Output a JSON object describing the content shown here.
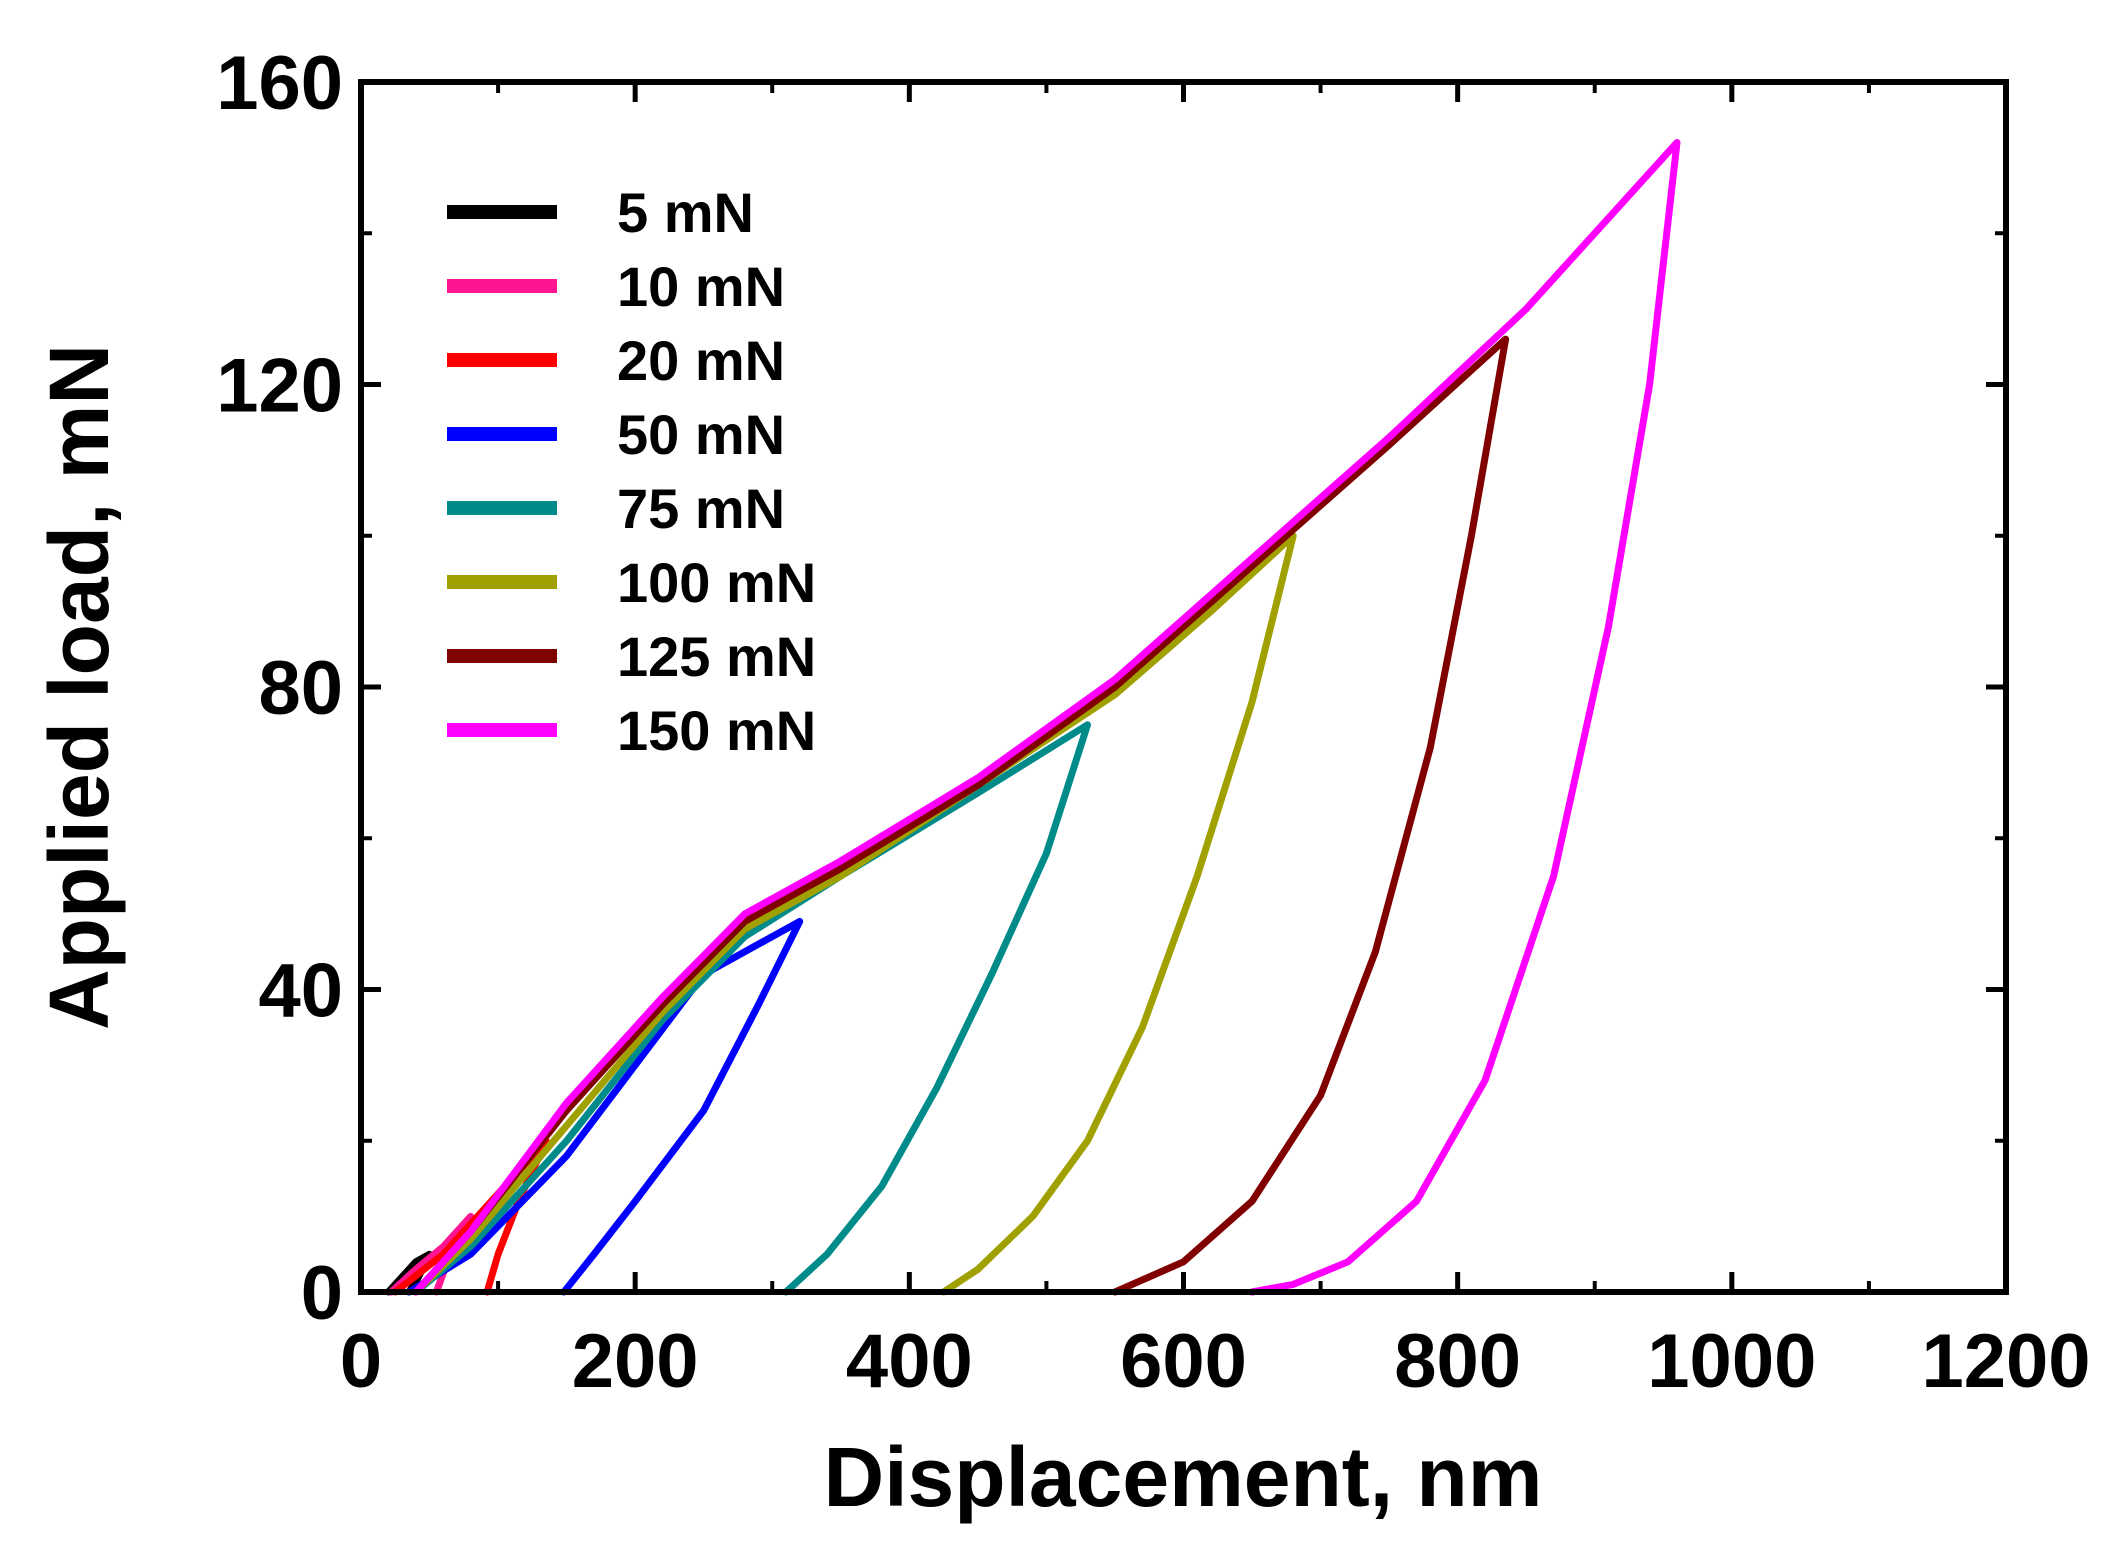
{
  "chart_data": {
    "type": "line",
    "title": "",
    "xlabel": "Displacement, nm",
    "ylabel": "Applied load, mN",
    "xlim": [
      0,
      1200
    ],
    "ylim": [
      0,
      160
    ],
    "xticks": [
      0,
      200,
      400,
      600,
      800,
      1000,
      1200
    ],
    "yticks": [
      0,
      40,
      80,
      120,
      160
    ],
    "xtick_labels": [
      "0",
      "200",
      "400",
      "600",
      "800",
      "1000",
      "1200"
    ],
    "ytick_labels": [
      "0",
      "40",
      "80",
      "120",
      "160"
    ],
    "grid": false,
    "legend_position": "top-left",
    "series": [
      {
        "name": "5 mN",
        "color": "#000000",
        "loading": [
          [
            20,
            0
          ],
          [
            30,
            2
          ],
          [
            40,
            4
          ],
          [
            50,
            5
          ]
        ],
        "unloading": [
          [
            50,
            5
          ],
          [
            42,
            2
          ],
          [
            35,
            0
          ]
        ]
      },
      {
        "name": "10 mN",
        "color": "#ff1493",
        "loading": [
          [
            22,
            0
          ],
          [
            40,
            3
          ],
          [
            60,
            6
          ],
          [
            80,
            10
          ]
        ],
        "unloading": [
          [
            80,
            10
          ],
          [
            65,
            5
          ],
          [
            55,
            0
          ]
        ]
      },
      {
        "name": "20 mN",
        "color": "#ff0000",
        "loading": [
          [
            25,
            0
          ],
          [
            60,
            5
          ],
          [
            100,
            13
          ],
          [
            135,
            20
          ]
        ],
        "unloading": [
          [
            135,
            20
          ],
          [
            115,
            12
          ],
          [
            100,
            5
          ],
          [
            92,
            0
          ]
        ]
      },
      {
        "name": "50 mN",
        "color": "#0000ff",
        "loading": [
          [
            35,
            0
          ],
          [
            80,
            5
          ],
          [
            150,
            18
          ],
          [
            200,
            30
          ],
          [
            250,
            42
          ],
          [
            320,
            49
          ]
        ],
        "unloading": [
          [
            320,
            49
          ],
          [
            290,
            38
          ],
          [
            250,
            24
          ],
          [
            200,
            12
          ],
          [
            170,
            5
          ],
          [
            148,
            0
          ]
        ]
      },
      {
        "name": "75 mN",
        "color": "#008b8b",
        "loading": [
          [
            40,
            0
          ],
          [
            80,
            6
          ],
          [
            150,
            20
          ],
          [
            220,
            36
          ],
          [
            280,
            47
          ],
          [
            350,
            55
          ],
          [
            450,
            66
          ],
          [
            530,
            75
          ]
        ],
        "unloading": [
          [
            530,
            75
          ],
          [
            500,
            58
          ],
          [
            460,
            42
          ],
          [
            420,
            27
          ],
          [
            380,
            14
          ],
          [
            340,
            5
          ],
          [
            310,
            0
          ]
        ]
      },
      {
        "name": "100 mN",
        "color": "#a0a000",
        "loading": [
          [
            40,
            0
          ],
          [
            80,
            7
          ],
          [
            150,
            22
          ],
          [
            220,
            37
          ],
          [
            280,
            48
          ],
          [
            350,
            55
          ],
          [
            450,
            67
          ],
          [
            550,
            79
          ],
          [
            620,
            90
          ],
          [
            680,
            100
          ]
        ],
        "unloading": [
          [
            680,
            100
          ],
          [
            650,
            78
          ],
          [
            610,
            55
          ],
          [
            570,
            35
          ],
          [
            530,
            20
          ],
          [
            490,
            10
          ],
          [
            450,
            3
          ],
          [
            425,
            0
          ]
        ]
      },
      {
        "name": "125 mN",
        "color": "#800000",
        "loading": [
          [
            40,
            0
          ],
          [
            80,
            8
          ],
          [
            150,
            24
          ],
          [
            220,
            38
          ],
          [
            280,
            49
          ],
          [
            350,
            56
          ],
          [
            450,
            67
          ],
          [
            550,
            80
          ],
          [
            650,
            96
          ],
          [
            750,
            112
          ],
          [
            835,
            126
          ]
        ],
        "unloading": [
          [
            835,
            126
          ],
          [
            810,
            100
          ],
          [
            780,
            72
          ],
          [
            740,
            45
          ],
          [
            700,
            26
          ],
          [
            650,
            12
          ],
          [
            600,
            4
          ],
          [
            550,
            0
          ]
        ]
      },
      {
        "name": "150 mN",
        "color": "#ff00ff",
        "loading": [
          [
            40,
            0
          ],
          [
            80,
            8
          ],
          [
            150,
            25
          ],
          [
            220,
            39
          ],
          [
            280,
            50
          ],
          [
            350,
            57
          ],
          [
            450,
            68
          ],
          [
            550,
            81
          ],
          [
            650,
            97
          ],
          [
            750,
            113
          ],
          [
            850,
            130
          ],
          [
            960,
            152
          ]
        ],
        "unloading": [
          [
            960,
            152
          ],
          [
            940,
            120
          ],
          [
            910,
            88
          ],
          [
            870,
            55
          ],
          [
            820,
            28
          ],
          [
            770,
            12
          ],
          [
            720,
            4
          ],
          [
            680,
            1
          ],
          [
            650,
            0
          ]
        ]
      }
    ]
  }
}
